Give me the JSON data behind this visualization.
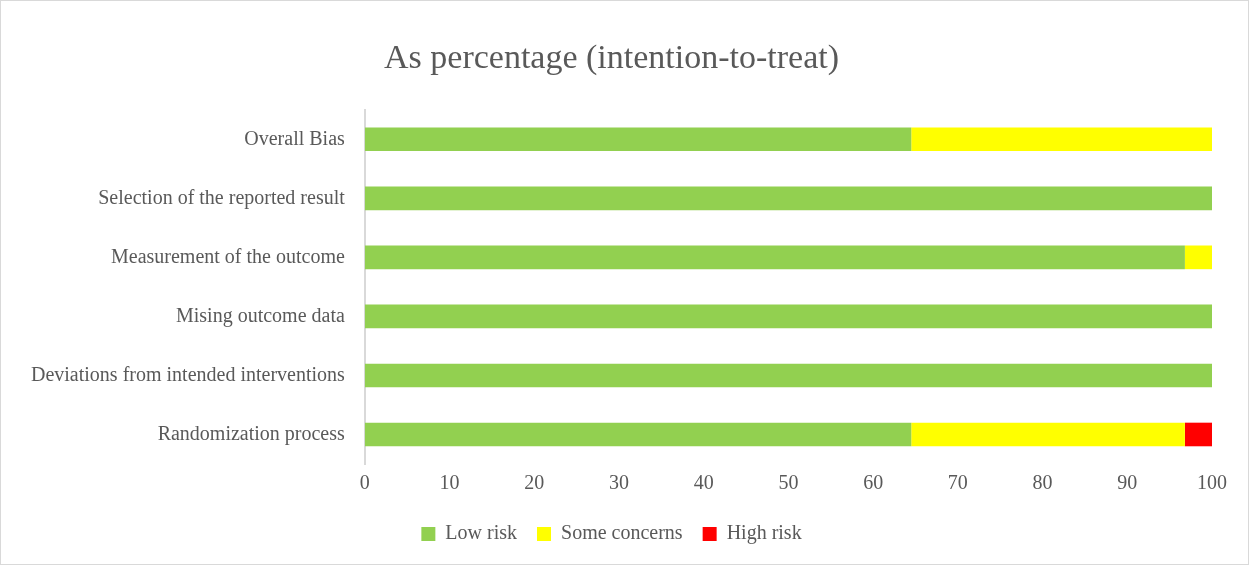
{
  "chart_data": {
    "type": "bar",
    "orientation": "horizontal",
    "stacked": true,
    "title": "As percentage (intention-to-treat)",
    "categories": [
      "Overall Bias",
      "Selection of the reported result",
      "Measurement of the outcome",
      "Mising outcome data",
      "Deviations from intended interventions",
      "Randomization process"
    ],
    "series": [
      {
        "name": "Low risk",
        "color": "#92d050",
        "values": [
          64.5,
          100,
          96.8,
          100,
          100,
          64.5
        ]
      },
      {
        "name": "Some concerns",
        "color": "#ffff00",
        "values": [
          35.5,
          0,
          3.2,
          0,
          0,
          32.3
        ]
      },
      {
        "name": "High risk",
        "color": "#ff0000",
        "values": [
          0,
          0,
          0,
          0,
          0,
          3.2
        ]
      }
    ],
    "xlim": [
      0,
      100
    ],
    "xticks": [
      0,
      10,
      20,
      30,
      40,
      50,
      60,
      70,
      80,
      90,
      100
    ],
    "grid": false,
    "legend": "bottom"
  }
}
